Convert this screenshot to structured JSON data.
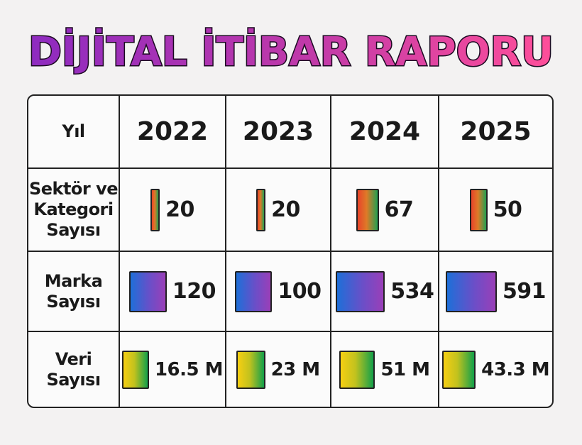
{
  "title": "DİJİTAL İTİBAR RAPORU",
  "colors": {
    "title_gradient": [
      "#8e2bc0",
      "#ff4f9a"
    ],
    "sector_gradient": [
      "#e8442a",
      "#22a050"
    ],
    "brand_gradient": [
      "#1e6fd8",
      "#9a3fb8"
    ],
    "data_gradient": [
      "#f6cf12",
      "#12a04a"
    ]
  },
  "chart_data": {
    "type": "table",
    "title": "DİJİTAL İTİBAR RAPORU",
    "header_label": "Yıl",
    "columns": [
      "2022",
      "2023",
      "2024",
      "2025"
    ],
    "rows": [
      {
        "label": "Sektör ve\nKategori\nSayısı",
        "values": [
          20,
          20,
          67,
          50
        ],
        "display": [
          "20",
          "20",
          "67",
          "50"
        ]
      },
      {
        "label": "Marka\nSayısı",
        "values": [
          120,
          100,
          534,
          591
        ],
        "display": [
          "120",
          "100",
          "534",
          "591"
        ]
      },
      {
        "label": "Veri\nSayısı",
        "values": [
          16.5,
          23,
          51,
          43.3
        ],
        "unit": "M",
        "display": [
          "16.5 M",
          "23 M",
          "51 M",
          "43.3 M"
        ]
      }
    ]
  }
}
